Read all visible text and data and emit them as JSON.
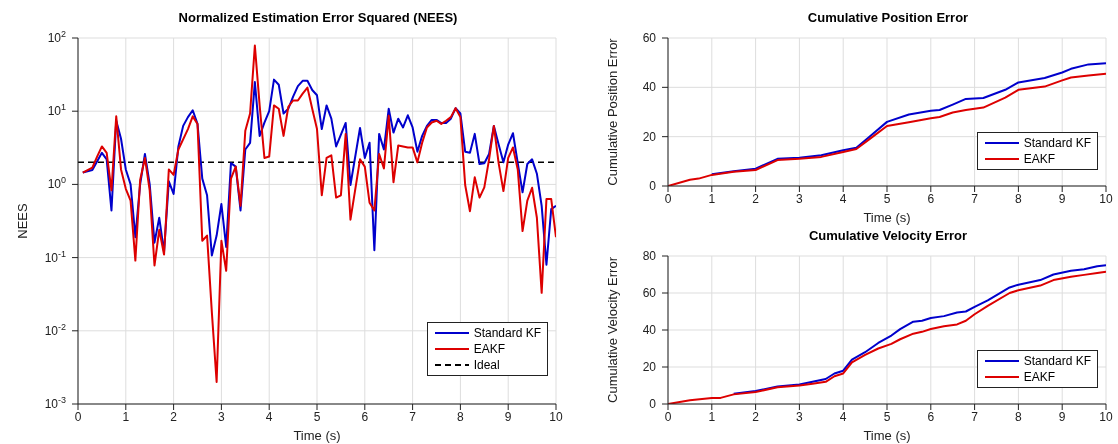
{
  "chart_data": [
    {
      "type": "line",
      "title": "Normalized Estimation Error Squared (NEES)",
      "xlabel": "Time (s)",
      "ylabel": "NEES",
      "log": true,
      "grid": true,
      "legend": "bottom right",
      "xlim": [
        0,
        10
      ],
      "xticks": [
        0,
        1,
        2,
        3,
        4,
        5,
        6,
        7,
        8,
        9,
        10
      ],
      "ylim": [
        0.001,
        100
      ],
      "yticks": [
        {
          "value": 0.001,
          "label": "10$^{-3}$"
        },
        {
          "value": 0.01,
          "label": "10$^{-2}$"
        },
        {
          "value": 0.1,
          "label": "10$^{-1}$"
        },
        {
          "value": 1,
          "label": "10$^{0}$"
        },
        {
          "value": 10,
          "label": "10$^{1}$"
        },
        {
          "value": 100,
          "label": "10$^{2}$"
        }
      ],
      "ref_lines": [
        {
          "axis": "y",
          "value": 2,
          "label": "Ideal",
          "color": "#000000",
          "line_style": "dashed"
        }
      ],
      "series": [
        {
          "name": "Standard KF",
          "color": "#0000cc",
          "x": [
            0.1,
            0.3,
            0.5,
            0.6,
            0.7,
            0.8,
            0.9,
            1.0,
            1.1,
            1.2,
            1.3,
            1.4,
            1.5,
            1.6,
            1.7,
            1.8,
            1.9,
            2.0,
            2.1,
            2.2,
            2.3,
            2.4,
            2.5,
            2.6,
            2.7,
            2.8,
            2.9,
            3.0,
            3.1,
            3.2,
            3.3,
            3.4,
            3.5,
            3.6,
            3.7,
            3.8,
            3.9,
            4.0,
            4.1,
            4.2,
            4.3,
            4.4,
            4.5,
            4.6,
            4.7,
            4.8,
            4.9,
            5.0,
            5.1,
            5.2,
            5.3,
            5.4,
            5.6,
            5.7,
            5.9,
            6.0,
            6.1,
            6.2,
            6.3,
            6.4,
            6.5,
            6.6,
            6.7,
            6.8,
            6.9,
            7.0,
            7.1,
            7.2,
            7.3,
            7.4,
            7.5,
            7.6,
            7.7,
            7.8,
            7.9,
            8.0,
            8.1,
            8.2,
            8.3,
            8.4,
            8.5,
            8.6,
            8.7,
            8.8,
            8.9,
            9.0,
            9.1,
            9.2,
            9.3,
            9.4,
            9.5,
            9.6,
            9.7,
            9.8,
            9.9,
            10.0
          ],
          "values": [
            1.45,
            1.57,
            2.7,
            2.2,
            0.44,
            7.4,
            4.2,
            1.6,
            1.0,
            0.19,
            1.0,
            2.6,
            1.0,
            0.16,
            0.35,
            0.12,
            1.1,
            0.74,
            3.3,
            6.3,
            8.3,
            10.3,
            6.7,
            1.2,
            0.71,
            0.107,
            0.2,
            0.54,
            0.14,
            1.95,
            1.75,
            0.44,
            3.0,
            3.7,
            25,
            4.6,
            7,
            10,
            27,
            23,
            9.3,
            10.8,
            15.8,
            22,
            26,
            26,
            19.5,
            16.5,
            5.7,
            12,
            7.9,
            3.3,
            6.9,
            0.98,
            5.9,
            2.3,
            3.7,
            0.126,
            4.9,
            3.0,
            10.8,
            5.1,
            7.9,
            6,
            8.8,
            6,
            2.8,
            4.6,
            6.3,
            7.6,
            7.6,
            6.9,
            6.9,
            7.9,
            11,
            9.3,
            2.8,
            2.7,
            4.9,
            1.9,
            1.95,
            2.6,
            6.3,
            3.5,
            2.0,
            3.5,
            5,
            1.95,
            0.78,
            1.9,
            2.2,
            1.4,
            0.51,
            0.08,
            0.46,
            0.51
          ]
        },
        {
          "name": "EAKF",
          "color": "#dd0000",
          "x": [
            0.1,
            0.3,
            0.4,
            0.5,
            0.6,
            0.7,
            0.8,
            0.9,
            1.0,
            1.1,
            1.2,
            1.3,
            1.4,
            1.5,
            1.6,
            1.7,
            1.8,
            1.9,
            2.0,
            2.1,
            2.3,
            2.4,
            2.5,
            2.6,
            2.7,
            2.8,
            2.9,
            3.0,
            3.1,
            3.2,
            3.3,
            3.4,
            3.5,
            3.6,
            3.7,
            3.8,
            3.9,
            4.0,
            4.1,
            4.2,
            4.3,
            4.4,
            4.5,
            4.6,
            4.7,
            4.8,
            4.9,
            5.0,
            5.1,
            5.2,
            5.3,
            5.4,
            5.5,
            5.6,
            5.7,
            5.9,
            6.0,
            6.1,
            6.2,
            6.3,
            6.4,
            6.5,
            6.6,
            6.7,
            6.8,
            6.9,
            7.0,
            7.1,
            7.2,
            7.3,
            7.4,
            7.5,
            7.6,
            7.7,
            7.8,
            7.9,
            8.0,
            8.1,
            8.2,
            8.3,
            8.4,
            8.5,
            8.6,
            8.7,
            8.8,
            8.9,
            9.0,
            9.1,
            9.2,
            9.3,
            9.4,
            9.5,
            9.6,
            9.7,
            9.8,
            9.9,
            10.0
          ],
          "values": [
            1.45,
            1.7,
            2.4,
            3.3,
            2.7,
            0.83,
            8.5,
            1.6,
            0.87,
            0.6,
            0.091,
            1.15,
            2.3,
            0.83,
            0.078,
            0.24,
            0.11,
            1.6,
            1.35,
            3.0,
            5.7,
            8.5,
            6.7,
            0.17,
            0.2,
            0.018,
            0.002,
            0.17,
            0.066,
            1.2,
            1.75,
            0.51,
            5.4,
            9.3,
            79,
            12,
            2.3,
            2.4,
            12,
            10.8,
            4.6,
            11.5,
            14,
            14,
            17.4,
            21,
            10.8,
            5.7,
            0.71,
            2.3,
            2.5,
            0.66,
            0.71,
            4.9,
            0.33,
            2.2,
            1.75,
            0.56,
            0.44,
            2.6,
            1.65,
            8.7,
            1.07,
            3.4,
            3.3,
            3.2,
            3.2,
            2.0,
            3.7,
            6,
            7.0,
            7.4,
            6.7,
            7.4,
            8.3,
            11,
            8.3,
            0.98,
            0.43,
            1.25,
            0.66,
            0.91,
            2.2,
            6.3,
            1.95,
            0.81,
            2.3,
            3.2,
            1.6,
            0.23,
            0.6,
            0.9,
            0.35,
            0.033,
            0.63,
            0.63,
            0.19
          ]
        }
      ]
    },
    {
      "type": "line",
      "title": "Cumulative Position Error",
      "xlabel": "Time (s)",
      "ylabel": "Cumulative Position Error",
      "grid": true,
      "legend": "bottom right",
      "xlim": [
        0,
        10
      ],
      "xticks": [
        0,
        1,
        2,
        3,
        4,
        5,
        6,
        7,
        8,
        9,
        10
      ],
      "ylim": [
        0,
        60
      ],
      "yticks": [
        0,
        20,
        40,
        60
      ],
      "series": [
        {
          "name": "Standard KF",
          "color": "#0000cc",
          "x": [
            1,
            1.5,
            2,
            2.5,
            3,
            3.5,
            4,
            4.3,
            4.6,
            5,
            5.5,
            6,
            6.2,
            6.5,
            6.8,
            7.2,
            7.7,
            8,
            8.6,
            9,
            9.2,
            9.6,
            10
          ],
          "values": [
            4.8,
            6,
            7,
            11,
            11.5,
            12.5,
            14.5,
            15.5,
            20,
            26,
            29,
            30.5,
            30.8,
            33,
            35.3,
            35.7,
            39,
            42,
            43.8,
            46,
            47.5,
            49.3,
            49.8
          ]
        },
        {
          "name": "EAKF",
          "color": "#dd0000",
          "x": [
            0,
            0.5,
            0.7,
            1,
            1.5,
            2,
            2.5,
            3,
            3.5,
            4,
            4.3,
            4.6,
            5,
            5.5,
            6,
            6.2,
            6.5,
            6.8,
            7.2,
            7.7,
            8,
            8.6,
            9,
            9.2,
            9.6,
            10
          ],
          "values": [
            0,
            2.5,
            3,
            4.5,
            5.8,
            6.5,
            10.5,
            11,
            11.8,
            13.8,
            15,
            19,
            24.3,
            25.8,
            27.5,
            28,
            29.8,
            30.8,
            31.8,
            35.8,
            39,
            40.3,
            42.8,
            44,
            44.8,
            45.5
          ]
        }
      ]
    },
    {
      "type": "line",
      "title": "Cumulative Velocity Error",
      "xlabel": "Time (s)",
      "ylabel": "Cumulative Velocity Error",
      "grid": true,
      "legend": "bottom right",
      "xlim": [
        0,
        10
      ],
      "xticks": [
        0,
        1,
        2,
        3,
        4,
        5,
        6,
        7,
        8,
        9,
        10
      ],
      "ylim": [
        0,
        80
      ],
      "yticks": [
        0,
        20,
        40,
        60,
        80
      ],
      "series": [
        {
          "name": "Standard KF",
          "color": "#0000cc",
          "x": [
            1.5,
            2,
            2.5,
            3,
            3.3,
            3.6,
            3.8,
            4,
            4.2,
            4.5,
            4.8,
            5.1,
            5.3,
            5.6,
            5.8,
            6,
            6.3,
            6.6,
            6.8,
            7,
            7.3,
            7.8,
            8,
            8.5,
            8.8,
            9.2,
            9.5,
            9.8,
            10
          ],
          "values": [
            5.5,
            7,
            9.5,
            10.5,
            12,
            13.5,
            16.5,
            18,
            24,
            28,
            33,
            37,
            40.5,
            44.5,
            45,
            46.5,
            47.5,
            49.5,
            50,
            52.5,
            56,
            63,
            64.5,
            67,
            70,
            72,
            72.8,
            74.5,
            75
          ]
        },
        {
          "name": "EAKF",
          "color": "#dd0000",
          "x": [
            0,
            0.5,
            1,
            1.2,
            1.5,
            2,
            2.5,
            3,
            3.3,
            3.6,
            3.8,
            4,
            4.2,
            4.5,
            4.8,
            5.1,
            5.3,
            5.6,
            5.8,
            6,
            6.3,
            6.6,
            6.8,
            7,
            7.3,
            7.8,
            8,
            8.5,
            8.8,
            9.2,
            9.5,
            9.8,
            10
          ],
          "values": [
            0,
            2,
            3.2,
            3.3,
            5.2,
            6.5,
            9,
            10,
            11,
            12,
            15,
            16.5,
            22.5,
            26.5,
            30,
            32.5,
            35,
            38,
            39,
            40.5,
            42,
            43,
            45,
            48.5,
            53,
            60,
            61.5,
            64,
            67,
            68.8,
            69.8,
            70.8,
            71.5
          ]
        }
      ]
    }
  ]
}
